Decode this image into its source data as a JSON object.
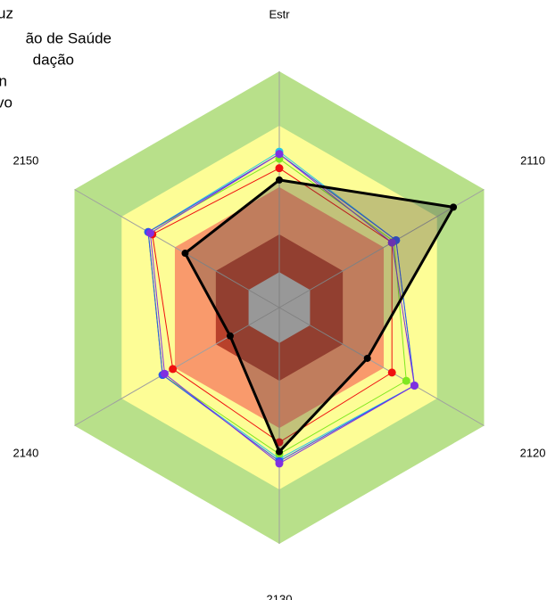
{
  "chart_data": {
    "type": "radar",
    "categories": [
      "Estr",
      "2110",
      "2120",
      "2130",
      "2140",
      "2150"
    ],
    "rlim": [
      0,
      100
    ],
    "bands": [
      {
        "value": 100,
        "color": "#b8e08a"
      },
      {
        "value": 77,
        "color": "#fdfd96"
      },
      {
        "value": 51,
        "color": "#f99a6c"
      },
      {
        "value": 31,
        "color": "#b8412b"
      },
      {
        "value": 15,
        "color": "#c0c0c0"
      }
    ],
    "series": [
      {
        "name": "uz",
        "color": "#27c6e8",
        "values": [
          66,
          57,
          66,
          64,
          57,
          64
        ]
      },
      {
        "name": "ão de Saúde",
        "color": "#f01010",
        "values": [
          59,
          55,
          55,
          57,
          52,
          62
        ]
      },
      {
        "name": "dação",
        "color": "#80e820",
        "values": [
          63,
          56,
          62,
          62,
          57,
          64
        ]
      },
      {
        "name": "n",
        "color": "#3050f0",
        "values": [
          65,
          57,
          66,
          65,
          57,
          64
        ]
      },
      {
        "name": "vo",
        "color": "#8030e0",
        "values": [
          65,
          55,
          66,
          66,
          56,
          63
        ]
      },
      {
        "color": "#000000",
        "values": [
          54,
          85,
          43,
          61,
          24,
          46
        ]
      }
    ]
  }
}
